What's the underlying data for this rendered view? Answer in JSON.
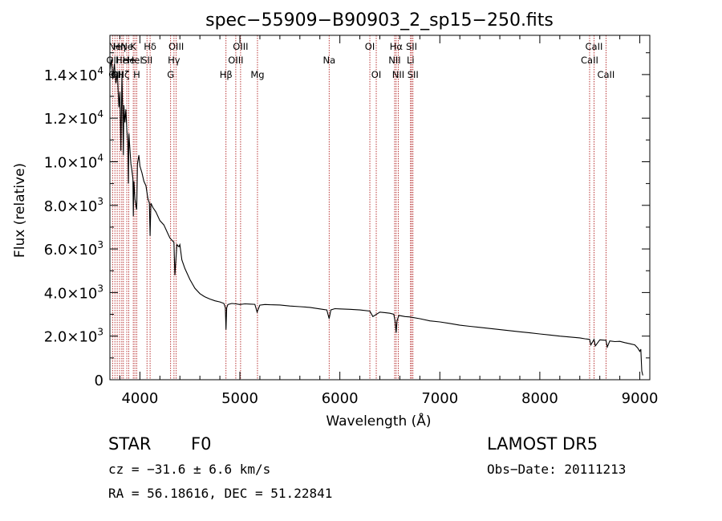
{
  "chart_data": {
    "type": "line",
    "title": "spec−55909−B90903_2_sp15−250.fits",
    "xlabel": "Wavelength (Å)",
    "ylabel": "Flux (relative)",
    "xlim": [
      3700,
      9100
    ],
    "ylim": [
      0,
      15800
    ],
    "xticks": [
      4000,
      5000,
      6000,
      7000,
      8000,
      9000
    ],
    "xtick_labels": [
      "4000",
      "5000",
      "6000",
      "7000",
      "8000",
      "9000"
    ],
    "yticks": [
      0,
      2000,
      4000,
      6000,
      8000,
      10000,
      12000,
      14000
    ],
    "ytick_labels": [
      {
        "mant": "0",
        "exp": ""
      },
      {
        "mant": "2.0×10",
        "exp": "3"
      },
      {
        "mant": "4.0×10",
        "exp": "3"
      },
      {
        "mant": "6.0×10",
        "exp": "3"
      },
      {
        "mant": "8.0×10",
        "exp": "3"
      },
      {
        "mant": "1.0×10",
        "exp": "4"
      },
      {
        "mant": "1.2×10",
        "exp": "4"
      },
      {
        "mant": "1.4×10",
        "exp": "4"
      }
    ],
    "grid": false,
    "series": [
      {
        "color": "#000000",
        "x": [
          3700,
          3715,
          3730,
          3745,
          3760,
          3775,
          3790,
          3800,
          3810,
          3820,
          3830,
          3835,
          3840,
          3850,
          3860,
          3870,
          3880,
          3885,
          3890,
          3900,
          3910,
          3920,
          3930,
          3934,
          3940,
          3950,
          3960,
          3968,
          3975,
          3990,
          4000,
          4020,
          4040,
          4060,
          4080,
          4095,
          4102,
          4110,
          4130,
          4160,
          4200,
          4240,
          4280,
          4300,
          4320,
          4340,
          4350,
          4370,
          4390,
          4400,
          4420,
          4450,
          4500,
          4550,
          4600,
          4650,
          4700,
          4750,
          4800,
          4840,
          4855,
          4861,
          4868,
          4880,
          4920,
          4960,
          5000,
          5050,
          5100,
          5150,
          5172,
          5200,
          5250,
          5300,
          5400,
          5500,
          5600,
          5700,
          5800,
          5870,
          5893,
          5910,
          5950,
          6000,
          6100,
          6200,
          6300,
          6330,
          6400,
          6450,
          6500,
          6540,
          6555,
          6563,
          6572,
          6590,
          6650,
          6700,
          6800,
          6900,
          7000,
          7100,
          7200,
          7300,
          7400,
          7500,
          7600,
          7700,
          7800,
          7900,
          8000,
          8100,
          8200,
          8300,
          8400,
          8450,
          8498,
          8510,
          8542,
          8555,
          8600,
          8662,
          8675,
          8700,
          8750,
          8800,
          8850,
          8900,
          8950,
          8980,
          9000,
          9010,
          9020,
          9030
        ],
        "y": [
          14200,
          14700,
          13800,
          14500,
          13600,
          14100,
          12500,
          13200,
          10500,
          14000,
          11800,
          10300,
          12600,
          11800,
          12400,
          11400,
          10900,
          9000,
          11300,
          10600,
          9900,
          9600,
          9200,
          7500,
          9100,
          8300,
          8000,
          7800,
          9900,
          10300,
          9800,
          9500,
          9100,
          8900,
          8300,
          8100,
          6600,
          8100,
          7900,
          7700,
          7300,
          7100,
          6700,
          6500,
          6400,
          6300,
          4800,
          6200,
          6100,
          6200,
          5500,
          5100,
          4600,
          4200,
          3950,
          3800,
          3700,
          3620,
          3570,
          3500,
          3300,
          2300,
          3300,
          3450,
          3500,
          3480,
          3450,
          3480,
          3470,
          3460,
          3100,
          3420,
          3450,
          3440,
          3430,
          3380,
          3350,
          3320,
          3250,
          3200,
          2800,
          3200,
          3260,
          3250,
          3230,
          3200,
          3150,
          2900,
          3100,
          3080,
          3050,
          3000,
          2600,
          2150,
          2700,
          2950,
          2900,
          2880,
          2800,
          2700,
          2650,
          2580,
          2500,
          2450,
          2400,
          2350,
          2300,
          2250,
          2200,
          2150,
          2100,
          2050,
          2000,
          1960,
          1920,
          1880,
          1850,
          1600,
          1850,
          1550,
          1830,
          1810,
          1500,
          1780,
          1750,
          1760,
          1700,
          1650,
          1600,
          1450,
          1300,
          1400,
          400,
          200
        ]
      }
    ],
    "line_labels": [
      {
        "x": 3727,
        "rows": [
          {
            "text": "OII",
            "row": 1
          }
        ]
      },
      {
        "x": 3750,
        "rows": [
          {
            "text": "Ne",
            "row": 0
          },
          {
            "text": "OII",
            "row": 2
          }
        ]
      },
      {
        "x": 3773,
        "rows": [
          {
            "text": "OII",
            "row": 2
          }
        ]
      },
      {
        "x": 3797,
        "rows": [
          {
            "text": "Hη",
            "row": 0
          }
        ]
      },
      {
        "x": 3819,
        "rows": [
          {
            "text": "He",
            "row": 1
          }
        ]
      },
      {
        "x": 3835,
        "rows": [
          {
            "text": "Hζ",
            "row": 2
          }
        ]
      },
      {
        "x": 3869,
        "rows": [
          {
            "text": "Ne",
            "row": 0
          }
        ]
      },
      {
        "x": 3889,
        "rows": [
          {
            "text": "He",
            "row": 1
          }
        ]
      },
      {
        "x": 3934,
        "rows": [
          {
            "text": "K",
            "row": 0
          }
        ]
      },
      {
        "x": 3950,
        "rows": [
          {
            "text": "HeI",
            "row": 1
          }
        ]
      },
      {
        "x": 3968,
        "rows": [
          {
            "text": "H",
            "row": 2
          }
        ]
      },
      {
        "x": 4071,
        "rows": [
          {
            "text": "SII",
            "row": 1
          }
        ]
      },
      {
        "x": 4102,
        "rows": [
          {
            "text": "Hδ",
            "row": 0
          }
        ]
      },
      {
        "x": 4307,
        "rows": [
          {
            "text": "G",
            "row": 2
          }
        ]
      },
      {
        "x": 4341,
        "rows": [
          {
            "text": "Hγ",
            "row": 1
          }
        ]
      },
      {
        "x": 4363,
        "rows": [
          {
            "text": "OIII",
            "row": 0
          }
        ]
      },
      {
        "x": 4861,
        "rows": [
          {
            "text": "Hβ",
            "row": 2
          }
        ]
      },
      {
        "x": 4959,
        "rows": [
          {
            "text": "OIII",
            "row": 1
          }
        ]
      },
      {
        "x": 5007,
        "rows": [
          {
            "text": "OIII",
            "row": 0
          }
        ]
      },
      {
        "x": 5176,
        "rows": [
          {
            "text": "Mg",
            "row": 2
          }
        ]
      },
      {
        "x": 5893,
        "rows": [
          {
            "text": "Na",
            "row": 1
          }
        ]
      },
      {
        "x": 6300,
        "rows": [
          {
            "text": "OI",
            "row": 0
          }
        ]
      },
      {
        "x": 6364,
        "rows": [
          {
            "text": "OI",
            "row": 2
          }
        ]
      },
      {
        "x": 6548,
        "rows": [
          {
            "text": "NII",
            "row": 1
          }
        ]
      },
      {
        "x": 6563,
        "rows": [
          {
            "text": "Hα",
            "row": 0
          }
        ]
      },
      {
        "x": 6584,
        "rows": [
          {
            "text": "NII",
            "row": 2
          }
        ]
      },
      {
        "x": 6707,
        "rows": [
          {
            "text": "Li",
            "row": 1
          }
        ]
      },
      {
        "x": 6717,
        "rows": [
          {
            "text": "SII",
            "row": 0
          }
        ]
      },
      {
        "x": 6731,
        "rows": [
          {
            "text": "SII",
            "row": 2
          }
        ]
      },
      {
        "x": 8498,
        "rows": [
          {
            "text": "CaII",
            "row": 1
          }
        ]
      },
      {
        "x": 8542,
        "rows": [
          {
            "text": "CaII",
            "row": 0
          }
        ]
      },
      {
        "x": 8662,
        "rows": [
          {
            "text": "CaII",
            "row": 2
          }
        ]
      }
    ]
  },
  "info": {
    "object_class": "STAR",
    "subclass": "F0",
    "survey": "LAMOST DR5",
    "redshift": "cz = −31.6 ± 6.6 km/s",
    "obs_date": "Obs−Date: 20111213",
    "coords": "RA =  56.18616, DEC =  51.22841"
  },
  "colors": {
    "line_markers": "#b22222",
    "spectrum": "#000000"
  }
}
